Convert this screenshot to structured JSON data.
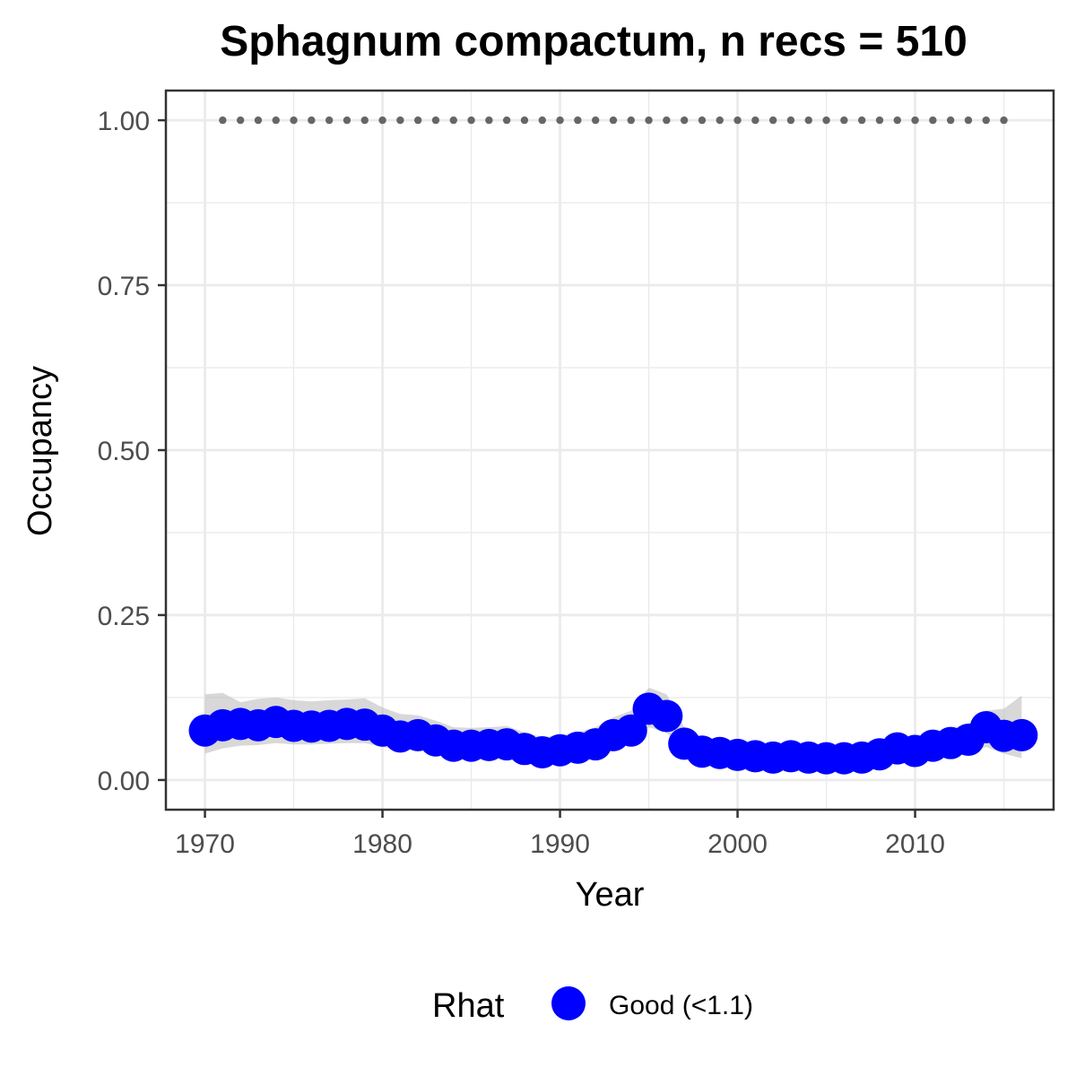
{
  "chart_data": {
    "type": "line",
    "title": "Sphagnum compactum, n recs = 510",
    "xlabel": "Year",
    "ylabel": "Occupancy",
    "xlim": [
      1967.8,
      2017.8
    ],
    "ylim": [
      -0.045,
      1.045
    ],
    "x_ticks": [
      1970,
      1980,
      1990,
      2000,
      2010
    ],
    "x_tick_labels": [
      "1970",
      "1980",
      "1990",
      "2000",
      "2010"
    ],
    "y_ticks": [
      0.0,
      0.25,
      0.5,
      0.75,
      1.0
    ],
    "y_tick_labels": [
      "0.00",
      "0.25",
      "0.50",
      "0.75",
      "1.00"
    ],
    "grid": true,
    "colors": {
      "series": "#0000ff",
      "ribbon": "#bebebe",
      "reference_dots": "#666666",
      "grid": "#ebebeb",
      "panel_border": "#333333"
    },
    "legend": {
      "title": "Rhat",
      "position": "bottom",
      "entries": [
        "Good (<1.1)"
      ]
    },
    "series": [
      {
        "name": "Good (<1.1)",
        "x": [
          1970,
          1971,
          1972,
          1973,
          1974,
          1975,
          1976,
          1977,
          1978,
          1979,
          1980,
          1981,
          1982,
          1983,
          1984,
          1985,
          1986,
          1987,
          1988,
          1989,
          1990,
          1991,
          1992,
          1993,
          1994,
          1995,
          1996,
          1997,
          1998,
          1999,
          2000,
          2001,
          2002,
          2003,
          2004,
          2005,
          2006,
          2007,
          2008,
          2009,
          2010,
          2011,
          2012,
          2013,
          2014,
          2015,
          2016
        ],
        "y": [
          0.075,
          0.083,
          0.085,
          0.083,
          0.088,
          0.082,
          0.081,
          0.082,
          0.085,
          0.084,
          0.075,
          0.066,
          0.068,
          0.06,
          0.052,
          0.052,
          0.053,
          0.054,
          0.047,
          0.042,
          0.045,
          0.049,
          0.054,
          0.068,
          0.075,
          0.108,
          0.097,
          0.055,
          0.043,
          0.041,
          0.038,
          0.036,
          0.034,
          0.036,
          0.034,
          0.033,
          0.033,
          0.034,
          0.039,
          0.048,
          0.044,
          0.052,
          0.056,
          0.061,
          0.08,
          0.067,
          0.068
        ],
        "lower": [
          0.04,
          0.048,
          0.052,
          0.053,
          0.056,
          0.054,
          0.054,
          0.055,
          0.056,
          0.056,
          0.05,
          0.046,
          0.046,
          0.042,
          0.038,
          0.038,
          0.039,
          0.039,
          0.035,
          0.031,
          0.032,
          0.035,
          0.039,
          0.048,
          0.055,
          0.08,
          0.072,
          0.042,
          0.032,
          0.03,
          0.028,
          0.026,
          0.025,
          0.026,
          0.025,
          0.024,
          0.024,
          0.025,
          0.028,
          0.034,
          0.032,
          0.036,
          0.038,
          0.04,
          0.05,
          0.04,
          0.033
        ],
        "upper": [
          0.13,
          0.132,
          0.118,
          0.123,
          0.125,
          0.121,
          0.119,
          0.121,
          0.122,
          0.124,
          0.11,
          0.1,
          0.098,
          0.09,
          0.08,
          0.079,
          0.08,
          0.082,
          0.072,
          0.065,
          0.068,
          0.072,
          0.08,
          0.095,
          0.105,
          0.14,
          0.13,
          0.08,
          0.062,
          0.06,
          0.056,
          0.054,
          0.05,
          0.054,
          0.052,
          0.05,
          0.05,
          0.052,
          0.058,
          0.068,
          0.063,
          0.072,
          0.078,
          0.085,
          0.105,
          0.108,
          0.128
        ]
      }
    ],
    "reference_dots": {
      "x": [
        1971,
        1972,
        1973,
        1974,
        1975,
        1976,
        1977,
        1978,
        1979,
        1980,
        1981,
        1982,
        1983,
        1984,
        1985,
        1986,
        1987,
        1988,
        1989,
        1990,
        1991,
        1992,
        1993,
        1994,
        1995,
        1996,
        1997,
        1998,
        1999,
        2000,
        2001,
        2002,
        2003,
        2004,
        2005,
        2006,
        2007,
        2008,
        2009,
        2010,
        2011,
        2012,
        2013,
        2014,
        2015
      ],
      "y": 1.0
    }
  }
}
